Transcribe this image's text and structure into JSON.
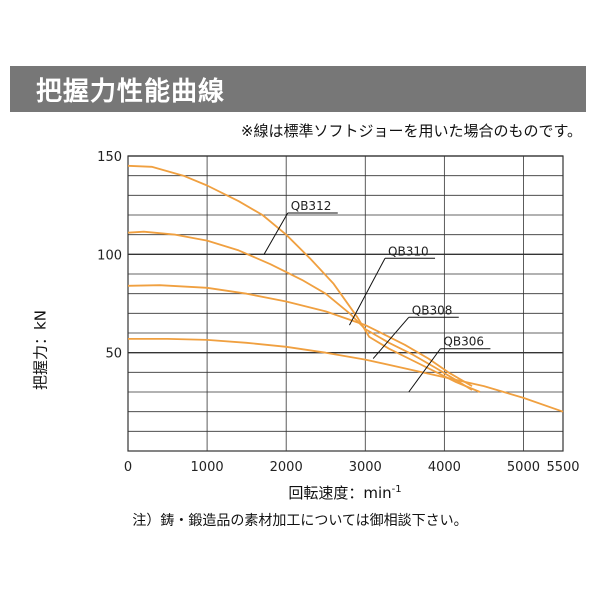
{
  "title": "把握力性能曲線",
  "note_top": "※線は標準ソフトジョーを用いた場合のものです。",
  "note_bottom": "注）鋳・鍛造品の素材加工については御相談下さい。",
  "colors": {
    "title_bg": "#777777",
    "curve": "#f0a040",
    "grid": "#333333"
  },
  "chart_data": {
    "type": "line",
    "xlabel": "回転速度：min",
    "xlabel_superscript": "-1",
    "ylabel": "把握力：kN",
    "xlim": [
      0,
      5500
    ],
    "ylim": [
      0,
      150
    ],
    "x_ticks": [
      0,
      1000,
      2000,
      3000,
      4000,
      5000,
      5500
    ],
    "y_ticks": [
      50,
      100,
      150
    ],
    "grid": true,
    "series": [
      {
        "name": "QB312",
        "x": [
          0,
          300,
          700,
          1000,
          1400,
          1700,
          2000,
          2300,
          2600,
          2900,
          3050,
          3300,
          3600,
          3900,
          4150,
          4450
        ],
        "y": [
          145,
          144.5,
          140,
          135,
          127,
          120,
          110,
          98,
          85,
          68,
          58,
          52,
          46,
          40,
          35,
          30
        ]
      },
      {
        "name": "QB310",
        "x": [
          0,
          200,
          600,
          1000,
          1400,
          1800,
          2200,
          2500,
          2800,
          3000,
          3300,
          3600,
          3900,
          4150,
          4350
        ],
        "y": [
          111,
          111.5,
          110,
          107,
          102,
          95,
          87,
          80,
          70,
          62,
          55,
          49,
          42,
          36,
          31
        ]
      },
      {
        "name": "QB308",
        "x": [
          0,
          400,
          1000,
          1500,
          2000,
          2500,
          3000,
          3500,
          3800,
          4050,
          4350
        ],
        "y": [
          84,
          84.3,
          83,
          80,
          76,
          71,
          64,
          54,
          47,
          40,
          33
        ]
      },
      {
        "name": "QB306",
        "x": [
          0,
          500,
          1000,
          1500,
          2000,
          2500,
          3000,
          3500,
          4000,
          4500,
          5000,
          5500
        ],
        "y": [
          57,
          57,
          56.5,
          55,
          53,
          50,
          46.5,
          42,
          37.5,
          33,
          27,
          20
        ]
      }
    ],
    "labels": [
      {
        "series": "QB312",
        "text": "QB312",
        "anchor_x": 1720,
        "anchor_y": 100,
        "label_x": 2020,
        "label_y": 121
      },
      {
        "series": "QB310",
        "text": "QB310",
        "anchor_x": 2800,
        "anchor_y": 64,
        "label_x": 3250,
        "label_y": 98
      },
      {
        "series": "QB308",
        "text": "QB308",
        "anchor_x": 3100,
        "anchor_y": 47,
        "label_x": 3550,
        "label_y": 68
      },
      {
        "series": "QB306",
        "text": "QB306",
        "anchor_x": 3550,
        "anchor_y": 30,
        "label_x": 3950,
        "label_y": 52
      }
    ]
  }
}
